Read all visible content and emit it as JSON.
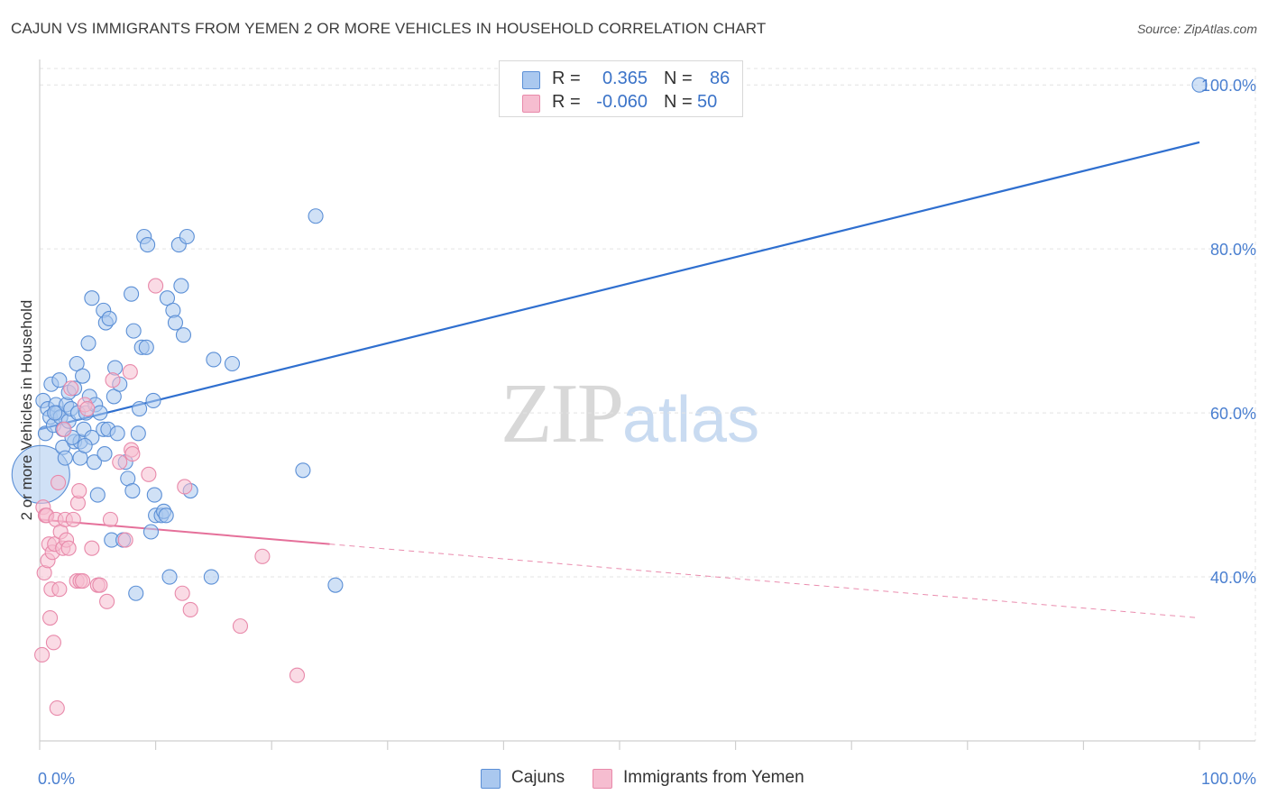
{
  "title": "CAJUN VS IMMIGRANTS FROM YEMEN 2 OR MORE VEHICLES IN HOUSEHOLD CORRELATION CHART",
  "source": "Source: ZipAtlas.com",
  "watermark": {
    "zip": "ZIP",
    "atlas": "atlas"
  },
  "legend": {
    "r_label": "R =",
    "n_label": "N =",
    "rows": [
      {
        "series": "Cajuns",
        "r": "0.365",
        "n": "86"
      },
      {
        "series": "Immigrants from Yemen",
        "r": "-0.060",
        "n": "50"
      }
    ]
  },
  "colors": {
    "blue_fill": "#aac8ef",
    "blue_stroke": "#5b8fd6",
    "blue_line": "#2f6fcf",
    "pink_fill": "#f6bdd0",
    "pink_stroke": "#e889aa",
    "pink_line": "#e5709a",
    "tick_text": "#4a7fd0",
    "grid": "#e3e3e3"
  },
  "chart_data": {
    "type": "scatter",
    "title": "CAJUN VS IMMIGRANTS FROM YEMEN 2 OR MORE VEHICLES IN HOUSEHOLD CORRELATION CHART",
    "xlabel": "",
    "ylabel": "2 or more Vehicles in Household",
    "xlim": [
      0,
      100
    ],
    "ylim": [
      20,
      102
    ],
    "x_tick_labels": [
      "0.0%",
      "100.0%"
    ],
    "y_ticks": [
      40,
      60,
      80,
      100
    ],
    "y_tick_labels": [
      "40.0%",
      "60.0%",
      "80.0%",
      "100.0%"
    ],
    "grid": true,
    "legend_position": "top-center",
    "series": [
      {
        "name": "Cajuns",
        "trend": {
          "x0": 0,
          "y0": 58.0,
          "x1": 100,
          "y1": 93.0,
          "style": "solid"
        },
        "points": [
          {
            "x": 0.1,
            "y": 52.5,
            "size": 4.0
          },
          {
            "x": 0.3,
            "y": 61.5
          },
          {
            "x": 0.5,
            "y": 57.5
          },
          {
            "x": 0.7,
            "y": 60.5
          },
          {
            "x": 0.9,
            "y": 59.5
          },
          {
            "x": 1.0,
            "y": 63.5
          },
          {
            "x": 1.2,
            "y": 58.5
          },
          {
            "x": 1.4,
            "y": 61.0
          },
          {
            "x": 1.5,
            "y": 60.0
          },
          {
            "x": 1.7,
            "y": 64.0
          },
          {
            "x": 1.8,
            "y": 59.5
          },
          {
            "x": 2.0,
            "y": 58.0
          },
          {
            "x": 2.0,
            "y": 55.8
          },
          {
            "x": 2.2,
            "y": 54.5
          },
          {
            "x": 2.3,
            "y": 61.0
          },
          {
            "x": 2.5,
            "y": 62.5
          },
          {
            "x": 2.5,
            "y": 59.0
          },
          {
            "x": 2.7,
            "y": 60.5
          },
          {
            "x": 3.0,
            "y": 63.0
          },
          {
            "x": 3.0,
            "y": 56.5
          },
          {
            "x": 3.2,
            "y": 66.0
          },
          {
            "x": 3.3,
            "y": 60.0
          },
          {
            "x": 3.5,
            "y": 54.5
          },
          {
            "x": 3.5,
            "y": 56.5
          },
          {
            "x": 3.7,
            "y": 64.5
          },
          {
            "x": 3.8,
            "y": 58.0
          },
          {
            "x": 4.0,
            "y": 60.0
          },
          {
            "x": 4.2,
            "y": 68.5
          },
          {
            "x": 4.3,
            "y": 62.0
          },
          {
            "x": 4.5,
            "y": 57.0
          },
          {
            "x": 4.5,
            "y": 74.0
          },
          {
            "x": 4.7,
            "y": 54.0
          },
          {
            "x": 4.8,
            "y": 61.0
          },
          {
            "x": 5.0,
            "y": 50.0
          },
          {
            "x": 5.2,
            "y": 60.0
          },
          {
            "x": 5.5,
            "y": 72.5
          },
          {
            "x": 5.5,
            "y": 58.0
          },
          {
            "x": 5.6,
            "y": 55.0
          },
          {
            "x": 5.7,
            "y": 71.0
          },
          {
            "x": 5.9,
            "y": 58.0
          },
          {
            "x": 6.0,
            "y": 71.5
          },
          {
            "x": 6.2,
            "y": 44.5
          },
          {
            "x": 6.4,
            "y": 62.0
          },
          {
            "x": 6.5,
            "y": 65.5
          },
          {
            "x": 6.7,
            "y": 57.5
          },
          {
            "x": 6.9,
            "y": 63.5
          },
          {
            "x": 7.2,
            "y": 44.5
          },
          {
            "x": 7.4,
            "y": 54.0
          },
          {
            "x": 7.6,
            "y": 52.0
          },
          {
            "x": 7.9,
            "y": 74.5
          },
          {
            "x": 8.0,
            "y": 50.5
          },
          {
            "x": 8.1,
            "y": 70.0
          },
          {
            "x": 8.3,
            "y": 38.0
          },
          {
            "x": 8.5,
            "y": 57.5
          },
          {
            "x": 8.6,
            "y": 60.5
          },
          {
            "x": 8.8,
            "y": 68.0
          },
          {
            "x": 9.0,
            "y": 81.5
          },
          {
            "x": 9.2,
            "y": 68.0
          },
          {
            "x": 9.3,
            "y": 80.5
          },
          {
            "x": 9.6,
            "y": 45.5
          },
          {
            "x": 9.8,
            "y": 61.5
          },
          {
            "x": 9.9,
            "y": 50.0
          },
          {
            "x": 10.0,
            "y": 47.5
          },
          {
            "x": 10.5,
            "y": 47.5
          },
          {
            "x": 10.7,
            "y": 48.0
          },
          {
            "x": 10.9,
            "y": 47.5
          },
          {
            "x": 11.0,
            "y": 74.0
          },
          {
            "x": 11.2,
            "y": 40.0
          },
          {
            "x": 11.5,
            "y": 72.5
          },
          {
            "x": 11.7,
            "y": 71.0
          },
          {
            "x": 12.0,
            "y": 80.5
          },
          {
            "x": 12.2,
            "y": 75.5
          },
          {
            "x": 12.4,
            "y": 69.5
          },
          {
            "x": 12.7,
            "y": 81.5
          },
          {
            "x": 13.0,
            "y": 50.5
          },
          {
            "x": 14.8,
            "y": 40.0
          },
          {
            "x": 15.0,
            "y": 66.5
          },
          {
            "x": 16.6,
            "y": 66.0
          },
          {
            "x": 22.7,
            "y": 53.0
          },
          {
            "x": 23.8,
            "y": 84.0
          },
          {
            "x": 25.5,
            "y": 39.0
          },
          {
            "x": 100.0,
            "y": 100.0
          },
          {
            "x": 3.9,
            "y": 56.0
          },
          {
            "x": 1.3,
            "y": 60.0
          },
          {
            "x": 2.8,
            "y": 57.0
          }
        ]
      },
      {
        "name": "Immigrants from Yemen",
        "trend": {
          "x0": 0,
          "y0": 47.0,
          "x1": 25,
          "y1": 44.0,
          "style": "solid",
          "dashed_to": {
            "x": 100,
            "y": 35.0
          }
        },
        "points": [
          {
            "x": 0.2,
            "y": 30.5
          },
          {
            "x": 0.3,
            "y": 48.5
          },
          {
            "x": 0.4,
            "y": 40.5
          },
          {
            "x": 0.5,
            "y": 47.5
          },
          {
            "x": 0.6,
            "y": 47.5
          },
          {
            "x": 0.7,
            "y": 42.0
          },
          {
            "x": 0.8,
            "y": 44.0
          },
          {
            "x": 0.9,
            "y": 35.0
          },
          {
            "x": 1.0,
            "y": 38.5
          },
          {
            "x": 1.1,
            "y": 43.0
          },
          {
            "x": 1.2,
            "y": 32.0
          },
          {
            "x": 1.3,
            "y": 44.0
          },
          {
            "x": 1.4,
            "y": 47.0
          },
          {
            "x": 1.5,
            "y": 24.0
          },
          {
            "x": 1.6,
            "y": 51.5
          },
          {
            "x": 1.7,
            "y": 38.5
          },
          {
            "x": 1.8,
            "y": 45.5
          },
          {
            "x": 2.0,
            "y": 43.5
          },
          {
            "x": 2.1,
            "y": 58.0
          },
          {
            "x": 2.2,
            "y": 47.0
          },
          {
            "x": 2.3,
            "y": 44.5
          },
          {
            "x": 2.5,
            "y": 43.5
          },
          {
            "x": 2.7,
            "y": 63.0
          },
          {
            "x": 2.9,
            "y": 47.0
          },
          {
            "x": 3.2,
            "y": 39.5
          },
          {
            "x": 3.3,
            "y": 49.0
          },
          {
            "x": 3.4,
            "y": 50.5
          },
          {
            "x": 3.5,
            "y": 39.5
          },
          {
            "x": 3.7,
            "y": 39.5
          },
          {
            "x": 3.9,
            "y": 61.0
          },
          {
            "x": 4.1,
            "y": 60.5
          },
          {
            "x": 4.5,
            "y": 43.5
          },
          {
            "x": 5.0,
            "y": 39.0
          },
          {
            "x": 5.2,
            "y": 39.0
          },
          {
            "x": 5.8,
            "y": 37.0
          },
          {
            "x": 6.1,
            "y": 47.0
          },
          {
            "x": 6.3,
            "y": 64.0
          },
          {
            "x": 6.9,
            "y": 54.0
          },
          {
            "x": 7.4,
            "y": 44.5
          },
          {
            "x": 7.8,
            "y": 65.0
          },
          {
            "x": 7.9,
            "y": 55.5
          },
          {
            "x": 8.0,
            "y": 55.0
          },
          {
            "x": 9.4,
            "y": 52.5
          },
          {
            "x": 10.0,
            "y": 75.5
          },
          {
            "x": 12.3,
            "y": 38.0
          },
          {
            "x": 12.5,
            "y": 51.0
          },
          {
            "x": 13.0,
            "y": 36.0
          },
          {
            "x": 17.3,
            "y": 34.0
          },
          {
            "x": 19.2,
            "y": 42.5
          },
          {
            "x": 22.2,
            "y": 28.0
          }
        ]
      }
    ]
  }
}
